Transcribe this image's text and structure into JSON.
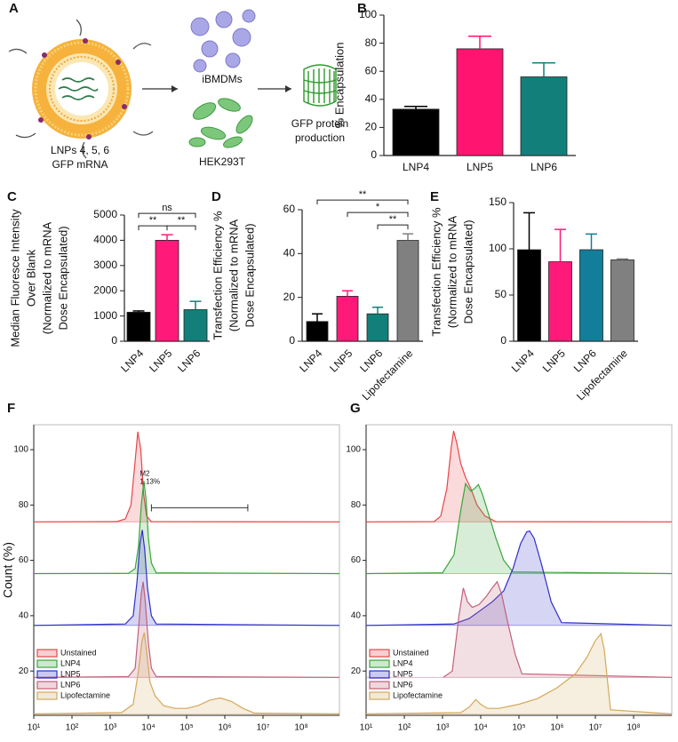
{
  "diagram": {
    "panel": "A",
    "lnp_label": [
      "LNPs 4, 5, 6",
      "GFP mRNA"
    ],
    "cells_top": "iBMDMs",
    "cells_bottom": "HEK293T",
    "product": [
      "GFP protein",
      "production"
    ]
  },
  "chart_data": [
    {
      "panel": "B",
      "type": "bar",
      "ylabel": [
        "% Encapsulation"
      ],
      "categories": [
        "LNP4",
        "LNP5",
        "LNP6"
      ],
      "values": [
        33,
        76,
        56
      ],
      "errors": [
        2,
        9,
        10
      ],
      "colors": [
        "#000000",
        "#ff1470",
        "#137f7a"
      ],
      "ylim": [
        0,
        100
      ],
      "yticks": [
        0,
        20,
        40,
        60,
        80,
        100
      ]
    },
    {
      "panel": "C",
      "type": "bar",
      "ylabel": [
        "Median Fluoresce Intensity",
        "Over Blank",
        "(Normalized to mRNA",
        "Dose Encapsulated)"
      ],
      "categories": [
        "LNP4",
        "LNP5",
        "LNP6"
      ],
      "values": [
        1150,
        4000,
        1250
      ],
      "errors": [
        50,
        220,
        330
      ],
      "colors": [
        "#000000",
        "#ff1a7a",
        "#137f7a"
      ],
      "ylim": [
        0,
        5000
      ],
      "yticks": [
        0,
        1000,
        2000,
        3000,
        4000,
        5000
      ],
      "brackets": [
        {
          "between": [
            "LNP4",
            "LNP5"
          ],
          "label": "**"
        },
        {
          "between": [
            "LNP5",
            "LNP6"
          ],
          "label": "**"
        },
        {
          "between": [
            "LNP4",
            "LNP6"
          ],
          "label": "ns"
        }
      ]
    },
    {
      "panel": "D",
      "type": "bar",
      "ylabel": [
        "Transfection Efficiency %",
        "(Normalized to mRNA",
        "Dose Encapsulated)"
      ],
      "categories": [
        "LNP4",
        "LNP5",
        "LNP6",
        "Lipofectamine"
      ],
      "values": [
        9,
        20.5,
        12.5,
        46
      ],
      "errors": [
        3.5,
        2.5,
        3,
        3
      ],
      "colors": [
        "#000000",
        "#ff1a7a",
        "#137f7a",
        "#808080"
      ],
      "ylim": [
        0,
        60
      ],
      "yticks": [
        0,
        20,
        40,
        60
      ],
      "brackets": [
        {
          "between": [
            "LNP6",
            "Lipofectamine"
          ],
          "label": "**"
        },
        {
          "between": [
            "LNP5",
            "Lipofectamine"
          ],
          "label": "*"
        },
        {
          "between": [
            "LNP4",
            "Lipofectamine"
          ],
          "label": "**"
        }
      ]
    },
    {
      "panel": "E",
      "type": "bar",
      "ylabel": [
        "Transfection Efficiency %",
        "(Normalized to mRNA",
        "Dose Encapsulated)"
      ],
      "categories": [
        "LNP4",
        "LNP5",
        "LNP6",
        "Lipofectamine"
      ],
      "values": [
        99,
        86,
        99,
        88
      ],
      "errors": [
        40,
        35,
        17,
        1
      ],
      "colors": [
        "#000000",
        "#ff1a7a",
        "#127e99",
        "#808080"
      ],
      "ylim": [
        0,
        150
      ],
      "yticks": [
        0,
        50,
        100,
        150
      ]
    },
    {
      "panel": "F",
      "type": "density",
      "ylabel": [
        "Count (%)"
      ],
      "log_x": true,
      "legend": "bottom-left",
      "xlim": [
        10,
        1000000000
      ],
      "xticks": [
        {
          "value": 10,
          "label": "10¹"
        },
        {
          "value": 100,
          "label": "10²"
        },
        {
          "value": 1000,
          "label": "10³"
        },
        {
          "value": 10000,
          "label": "10⁴"
        },
        {
          "value": 100000,
          "label": "10⁵"
        },
        {
          "value": 1000000,
          "label": "10⁶"
        },
        {
          "value": 10000000,
          "label": "10⁷"
        },
        {
          "value": 100000000,
          "label": "10⁸"
        }
      ],
      "ylim": [
        4,
        109
      ],
      "yticks": [
        20,
        40,
        60,
        80,
        100
      ],
      "gate": {
        "label": "M2",
        "text": "1.13%",
        "x": [
          12000,
          4000000
        ],
        "y": 79
      },
      "series": [
        {
          "name": "Unstained",
          "color": "#e8454a",
          "baseline": 73.9,
          "x": [
            10,
            1500,
            2500,
            3500,
            4500,
            5300,
            6300,
            7500,
            9000,
            12000,
            1000000000
          ],
          "values": [
            73.9,
            74,
            75,
            80,
            96,
            106.5,
            100,
            84,
            76,
            74,
            73.9
          ]
        },
        {
          "name": "LNP4",
          "color": "#3aa53a",
          "baseline": 55.2,
          "x": [
            10,
            3000,
            4500,
            5500,
            6500,
            7600,
            8700,
            10000,
            12000,
            16000,
            1000000000
          ],
          "values": [
            55.2,
            55.3,
            57,
            65,
            80,
            88.7,
            82,
            68,
            59,
            55.5,
            55.2
          ]
        },
        {
          "name": "LNP5",
          "color": "#3030c8",
          "baseline": 36.5,
          "x": [
            10,
            2500,
            4000,
            5000,
            6000,
            6900,
            8000,
            9500,
            12000,
            16000,
            1000000000
          ],
          "values": [
            36.5,
            37,
            40,
            52,
            66,
            71,
            64,
            50,
            40,
            37,
            36.5
          ]
        },
        {
          "name": "LNP6",
          "color": "#c0607a",
          "baseline": 17.7,
          "x": [
            10,
            3000,
            4500,
            5500,
            6500,
            7300,
            8300,
            10000,
            12000,
            16000,
            1000000000
          ],
          "values": [
            17.7,
            18,
            21,
            35,
            48,
            52.3,
            45,
            30,
            21,
            18,
            17.7
          ]
        },
        {
          "name": "Lipofectamine",
          "color": "#d4a85a",
          "baseline": 4.5,
          "x": [
            10,
            2000,
            4000,
            5500,
            6800,
            7800,
            9000,
            11000,
            15000,
            25000,
            50000,
            100000,
            200000,
            400000,
            760000,
            1500000,
            3000000,
            6000000,
            1000000000
          ],
          "values": [
            4.5,
            5,
            8,
            20,
            31,
            33.9,
            27,
            16,
            11,
            7.5,
            6.5,
            6.5,
            7.5,
            9.5,
            10.3,
            9,
            6.5,
            4.8,
            4.5
          ]
        }
      ]
    },
    {
      "panel": "G",
      "type": "density",
      "ylabel": [],
      "log_x": true,
      "legend": "bottom-left",
      "xlim": [
        10,
        1000000000
      ],
      "xticks": [
        {
          "value": 10,
          "label": "10¹"
        },
        {
          "value": 100,
          "label": "10²"
        },
        {
          "value": 1000,
          "label": "10³"
        },
        {
          "value": 10000,
          "label": "10⁴"
        },
        {
          "value": 100000,
          "label": "10⁵"
        },
        {
          "value": 1000000,
          "label": "10⁶"
        },
        {
          "value": 10000000,
          "label": "10⁷"
        },
        {
          "value": 100000000,
          "label": "10⁸"
        }
      ],
      "ylim": [
        4,
        109
      ],
      "yticks": [
        20,
        40,
        60,
        80,
        100
      ],
      "series": [
        {
          "name": "Unstained",
          "color": "#e8454a",
          "baseline": 73.9,
          "x": [
            10,
            600,
            900,
            1300,
            1700,
            1950,
            2400,
            3000,
            4000,
            5500,
            8000,
            13000,
            25000,
            1000000000
          ],
          "values": [
            73.9,
            74,
            76,
            86,
            101,
            106.8,
            102,
            95,
            90,
            86,
            80,
            76,
            74,
            73.9
          ]
        },
        {
          "name": "LNP4",
          "color": "#3aa53a",
          "baseline": 55.2,
          "x": [
            10,
            1000,
            2000,
            3000,
            4000,
            5500,
            7000,
            8700,
            11000,
            15000,
            25000,
            40000,
            70000,
            1000000000
          ],
          "values": [
            55.2,
            55.5,
            62,
            78,
            87.7,
            85,
            86,
            87.4,
            84,
            78,
            68,
            60,
            55.8,
            55.2
          ]
        },
        {
          "name": "LNP5",
          "color": "#3030c8",
          "baseline": 36.5,
          "x": [
            10,
            2000,
            5000,
            10000,
            20000,
            40000,
            70000,
            110000,
            160000,
            190000,
            250000,
            400000,
            700000,
            1300000,
            1000000000
          ],
          "values": [
            36.5,
            37,
            39,
            42,
            45,
            49,
            57,
            66,
            70.3,
            70.6,
            68,
            58,
            45,
            37.5,
            36.5
          ]
        },
        {
          "name": "LNP6",
          "color": "#c0607a",
          "baseline": 17.7,
          "x": [
            1050,
            1800,
            2700,
            3500,
            4500,
            6000,
            9000,
            14000,
            20000,
            27000,
            35000,
            50000,
            80000,
            120000,
            1000000000
          ],
          "values": [
            17.7,
            20,
            40,
            50,
            45,
            43,
            44,
            47,
            50,
            52.3,
            48,
            38,
            26,
            19,
            17.7
          ]
        },
        {
          "name": "Lipofectamine",
          "color": "#d4a85a",
          "baseline": 4.5,
          "x": [
            10,
            3000,
            5000,
            7400,
            10000,
            15000,
            30000,
            100000,
            300000,
            1000000,
            3000000,
            6000000,
            10000000,
            14000000,
            17000000,
            25000000,
            1000000000
          ],
          "values": [
            4.5,
            5,
            7,
            9.7,
            8,
            6.5,
            6.5,
            8,
            10,
            14,
            19,
            25,
            31,
            33.5,
            28,
            6,
            4.5
          ]
        }
      ]
    }
  ]
}
